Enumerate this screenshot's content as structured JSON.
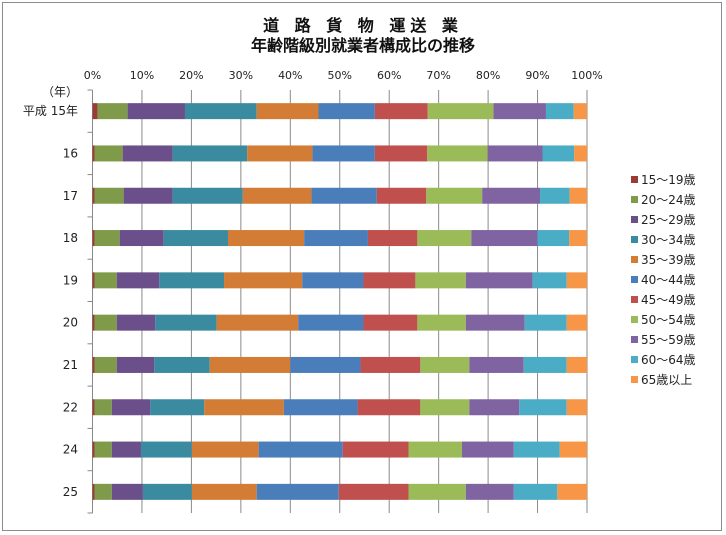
{
  "chart_data": {
    "type": "bar",
    "orientation": "horizontal",
    "stacked": "percent",
    "title": "道 路 貨 物 運送 業",
    "subtitle": "年齢階級別就業者構成比の推移",
    "ylabel": "（年）",
    "categories": [
      "平成 15年",
      "16",
      "17",
      "18",
      "19",
      "20",
      "21",
      "22",
      "24",
      "25"
    ],
    "xlim": [
      0,
      100
    ],
    "xticks": [
      "0%",
      "10%",
      "20%",
      "30%",
      "40%",
      "50%",
      "60%",
      "70%",
      "80%",
      "90%",
      "100%"
    ],
    "grid": true,
    "legend_position": "right",
    "series": [
      {
        "name": "15〜19歳",
        "color": "#9b3b38",
        "values": [
          1.0,
          0.4,
          0.4,
          0.4,
          0.4,
          0.4,
          0.4,
          0.4,
          0.4,
          0.4
        ]
      },
      {
        "name": "20〜24歳",
        "color": "#7f9a48",
        "values": [
          6.1,
          5.7,
          5.9,
          5.1,
          4.5,
          4.5,
          4.5,
          3.5,
          3.5,
          3.5
        ]
      },
      {
        "name": "25〜29歳",
        "color": "#6a4f8b",
        "values": [
          11.6,
          10.1,
          9.9,
          8.9,
          8.6,
          7.8,
          7.6,
          7.8,
          5.9,
          6.3
        ]
      },
      {
        "name": "30〜34歳",
        "color": "#3b8ba0",
        "values": [
          14.5,
          15.1,
          14.2,
          13.0,
          13.1,
          12.4,
          11.2,
          10.9,
          10.3,
          9.9
        ]
      },
      {
        "name": "35〜39歳",
        "color": "#d27c35",
        "values": [
          12.5,
          13.2,
          13.9,
          15.4,
          15.8,
          16.5,
          16.3,
          16.1,
          13.5,
          13.1
        ]
      },
      {
        "name": "40〜44歳",
        "color": "#4a7ebb",
        "values": [
          11.4,
          12.6,
          13.2,
          12.9,
          12.4,
          13.2,
          14.2,
          14.9,
          17.0,
          16.6
        ]
      },
      {
        "name": "45〜49歳",
        "color": "#c0504d",
        "values": [
          10.7,
          10.6,
          10.0,
          10.0,
          10.5,
          10.9,
          12.1,
          12.7,
          13.3,
          14.1
        ]
      },
      {
        "name": "50〜54歳",
        "color": "#9bbb59",
        "values": [
          13.3,
          12.2,
          11.3,
          10.9,
          10.2,
          9.8,
          9.9,
          9.9,
          10.8,
          11.6
        ]
      },
      {
        "name": "55〜59歳",
        "color": "#8064a2",
        "values": [
          10.6,
          11.1,
          11.7,
          13.4,
          13.5,
          11.9,
          11.0,
          10.1,
          10.5,
          9.7
        ]
      },
      {
        "name": "60〜64歳",
        "color": "#4bacc6",
        "values": [
          5.6,
          6.4,
          6.0,
          6.4,
          6.9,
          8.5,
          8.7,
          9.6,
          9.3,
          8.8
        ]
      },
      {
        "name": "65歳以上",
        "color": "#f79646",
        "values": [
          2.7,
          2.6,
          3.5,
          3.6,
          4.1,
          4.1,
          4.1,
          4.1,
          5.5,
          6.0
        ]
      }
    ]
  }
}
